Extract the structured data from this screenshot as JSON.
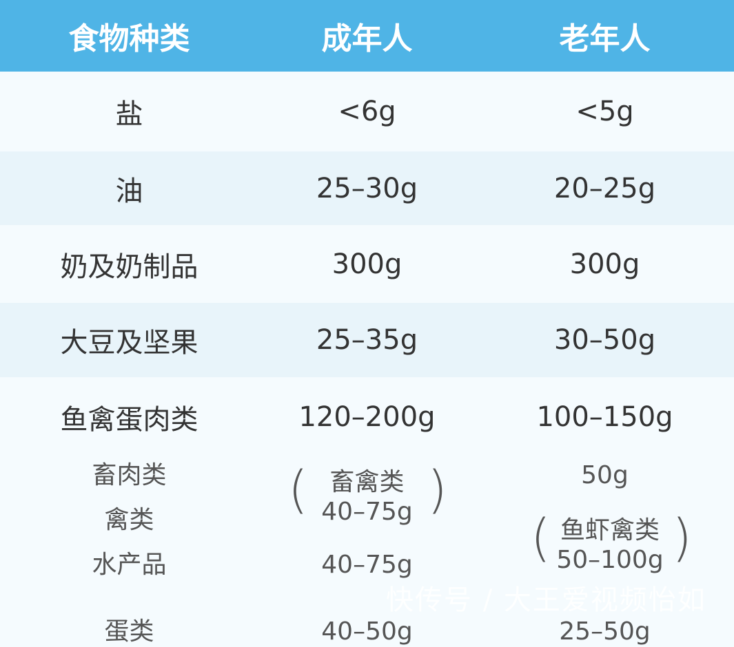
{
  "header": [
    "食物种类",
    "成年人",
    "老年人"
  ],
  "rows": [
    {
      "food": "盐",
      "adult": "<6g",
      "elder": "<5g"
    },
    {
      "food": "油",
      "adult": "25–30g",
      "elder": "20–25g"
    },
    {
      "food": "奶及奶制品",
      "adult": "300g",
      "elder": "300g"
    },
    {
      "food": "大豆及坚果",
      "adult": "25–35g",
      "elder": "30–50g"
    },
    {
      "food": "鱼禽蛋肉类",
      "adult": "120–200g",
      "elder": "100–150g"
    }
  ],
  "subitems": {
    "foods": [
      "畜肉类",
      "禽类",
      "水产品",
      "蛋类"
    ],
    "adult_group_label": "畜禽类",
    "adult_group_value": "40–75g",
    "adult_aquatic": "40–75g",
    "adult_egg": "40–50g",
    "elder_meat": "50g",
    "elder_group_label": "鱼虾禽类",
    "elder_group_value": "50–100g",
    "elder_egg": "25–50g"
  },
  "watermark": "快传号 / 大王爱视频怡如",
  "colors": {
    "header": "#4fb4e6",
    "row_light": "#f5fbfe",
    "row_alt": "#e8f4fa",
    "text": "#333333"
  }
}
